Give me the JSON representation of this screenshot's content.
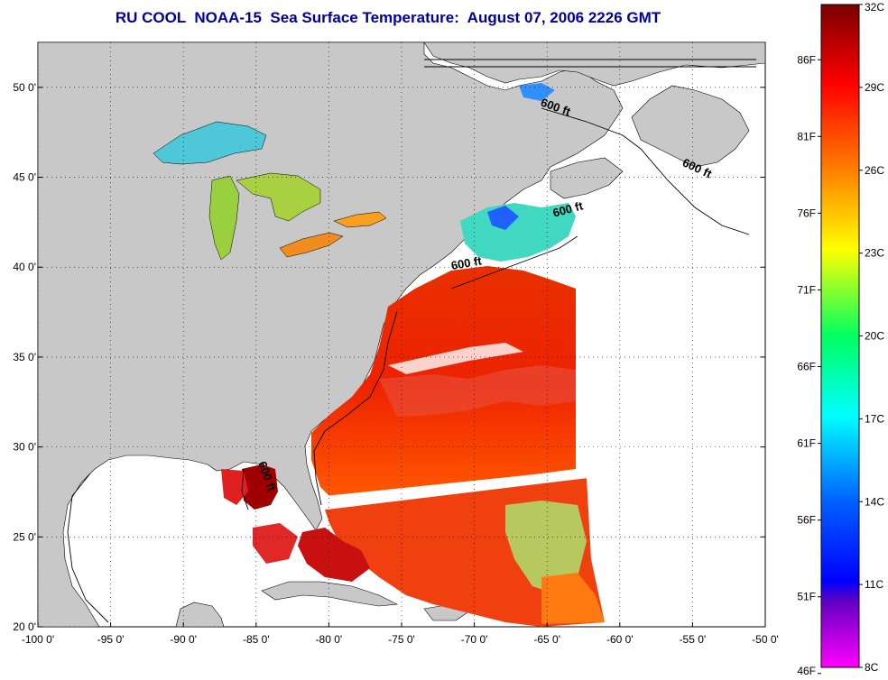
{
  "title": "RU COOL  NOAA-15  Sea Surface Temperature:  August 07, 2006 2226 GMT",
  "map": {
    "lon_range": [
      -100,
      -50
    ],
    "lat_range": [
      20,
      52.5
    ],
    "x_tick_labels": [
      "-100 0'",
      "-95 0'",
      "-90 0'",
      "-85 0'",
      "-80 0'",
      "-75 0'",
      "-70 0'",
      "-65 0'",
      "-60 0'",
      "-55 0'",
      "-50 0'"
    ],
    "y_tick_labels": [
      "50 0'",
      "45 0'",
      "40 0'",
      "35 0'",
      "30 0'",
      "25 0'",
      "20 0'"
    ],
    "contour_labels": [
      {
        "text": "600 ft",
        "lon": -64.5,
        "lat": 48.7
      },
      {
        "text": "600 ft",
        "lon": -54.8,
        "lat": 45.3
      },
      {
        "text": "600 ft",
        "lon": -63.5,
        "lat": 43.0
      },
      {
        "text": "600 ft",
        "lon": -70.5,
        "lat": 40.0
      },
      {
        "text": "600 ft",
        "lon": -84.5,
        "lat": 28.3
      }
    ],
    "land_color": "#c8c8c8",
    "no_data_color": "#ffffff"
  },
  "colorbar": {
    "range_c": [
      8,
      32
    ],
    "fahrenheit_labels": [
      "86F",
      "81F",
      "76F",
      "71F",
      "66F",
      "61F",
      "56F",
      "51F",
      "46F"
    ],
    "celsius_labels": [
      "32C",
      "29C",
      "26C",
      "23C",
      "20C",
      "17C",
      "14C",
      "11C",
      "8C"
    ],
    "colors": [
      "#8b0000",
      "#ff0000",
      "#ff8c00",
      "#ffff00",
      "#00ff80",
      "#00ffff",
      "#0050ff",
      "#0000ff",
      "#ff00ff"
    ]
  }
}
